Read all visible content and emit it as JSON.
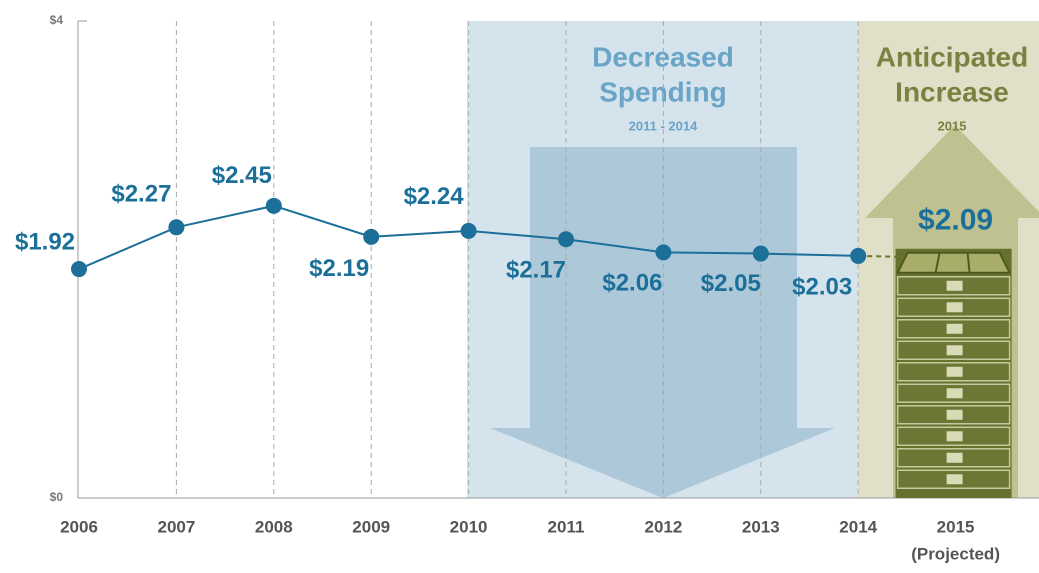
{
  "chart_data": {
    "type": "line",
    "categories": [
      "2006",
      "2007",
      "2008",
      "2009",
      "2010",
      "2011",
      "2012",
      "2013",
      "2014",
      "2015"
    ],
    "category_note": "(Projected)",
    "series": [
      {
        "color": "#1b6f98",
        "values": [
          1.92,
          2.27,
          2.45,
          2.19,
          2.24,
          2.17,
          2.06,
          2.05,
          2.03,
          2.09
        ],
        "value_labels": [
          "$1.92",
          "$2.27",
          "$2.45",
          "$2.19",
          "$2.24",
          "$2.17",
          "$2.06",
          "$2.05",
          "$2.03",
          "$2.09"
        ]
      }
    ],
    "ylim": [
      0,
      4
    ],
    "yticks": [
      {
        "value": 0,
        "label": "$0"
      },
      {
        "value": 4,
        "label": "$4"
      }
    ],
    "annotations": {
      "decrease_title": [
        "Decreased",
        "Spending"
      ],
      "decrease_period": "2011 - 2014",
      "increase_title": [
        "Anticipated",
        "Increase"
      ],
      "increase_period": "2015"
    },
    "grid": true
  }
}
